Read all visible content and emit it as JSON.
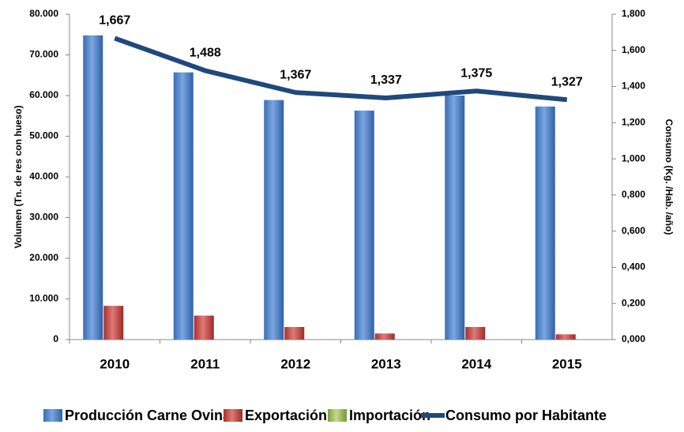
{
  "chart_data": {
    "type": "bar",
    "categories": [
      "2010",
      "2011",
      "2012",
      "2013",
      "2014",
      "2015"
    ],
    "y_label": "Volumen (Tn. de res con hueso)",
    "y2_label": "Consumo (Kg. /Hab. /año)",
    "ylim": [
      0,
      80000
    ],
    "yticks": [
      {
        "value": 0,
        "label": "0"
      },
      {
        "value": 10000,
        "label": "10.000"
      },
      {
        "value": 20000,
        "label": "20.000"
      },
      {
        "value": 30000,
        "label": "30.000"
      },
      {
        "value": 40000,
        "label": "40.000"
      },
      {
        "value": 50000,
        "label": "50.000"
      },
      {
        "value": 60000,
        "label": "60.000"
      },
      {
        "value": 70000,
        "label": "70.000"
      },
      {
        "value": 80000,
        "label": "80.000"
      }
    ],
    "y2lim": [
      0,
      1.8
    ],
    "y2ticks": [
      {
        "value": 0,
        "label": "0,000"
      },
      {
        "value": 0.2,
        "label": "0,200"
      },
      {
        "value": 0.4,
        "label": "0,400"
      },
      {
        "value": 0.6,
        "label": "0,600"
      },
      {
        "value": 0.8,
        "label": "0,800"
      },
      {
        "value": 1.0,
        "label": "1,000"
      },
      {
        "value": 1.2,
        "label": "1,200"
      },
      {
        "value": 1.4,
        "label": "1,400"
      },
      {
        "value": 1.6,
        "label": "1,600"
      },
      {
        "value": 1.8,
        "label": "1,800"
      }
    ],
    "legend": "bottom",
    "series": [
      {
        "name": "Producción Carne Ovina",
        "color": "#4a7ebb",
        "type": "bar",
        "values": [
          74800,
          65700,
          58900,
          56300,
          60000,
          57300
        ]
      },
      {
        "name": "Exportación",
        "color": "#c0504d",
        "type": "bar",
        "values": [
          8300,
          5900,
          3100,
          1500,
          3100,
          1300
        ]
      },
      {
        "name": "Importación",
        "color": "#9bbb59",
        "type": "bar",
        "values": [
          0,
          0,
          0,
          0,
          0,
          0
        ]
      },
      {
        "name": "Consumo por Habitante",
        "color": "#1f497d",
        "type": "line",
        "axis": "y2",
        "values": [
          1.667,
          1.488,
          1.367,
          1.337,
          1.375,
          1.327
        ],
        "value_labels": [
          "1,667",
          "1,488",
          "1,367",
          "1,337",
          "1,375",
          "1,327"
        ]
      }
    ]
  }
}
